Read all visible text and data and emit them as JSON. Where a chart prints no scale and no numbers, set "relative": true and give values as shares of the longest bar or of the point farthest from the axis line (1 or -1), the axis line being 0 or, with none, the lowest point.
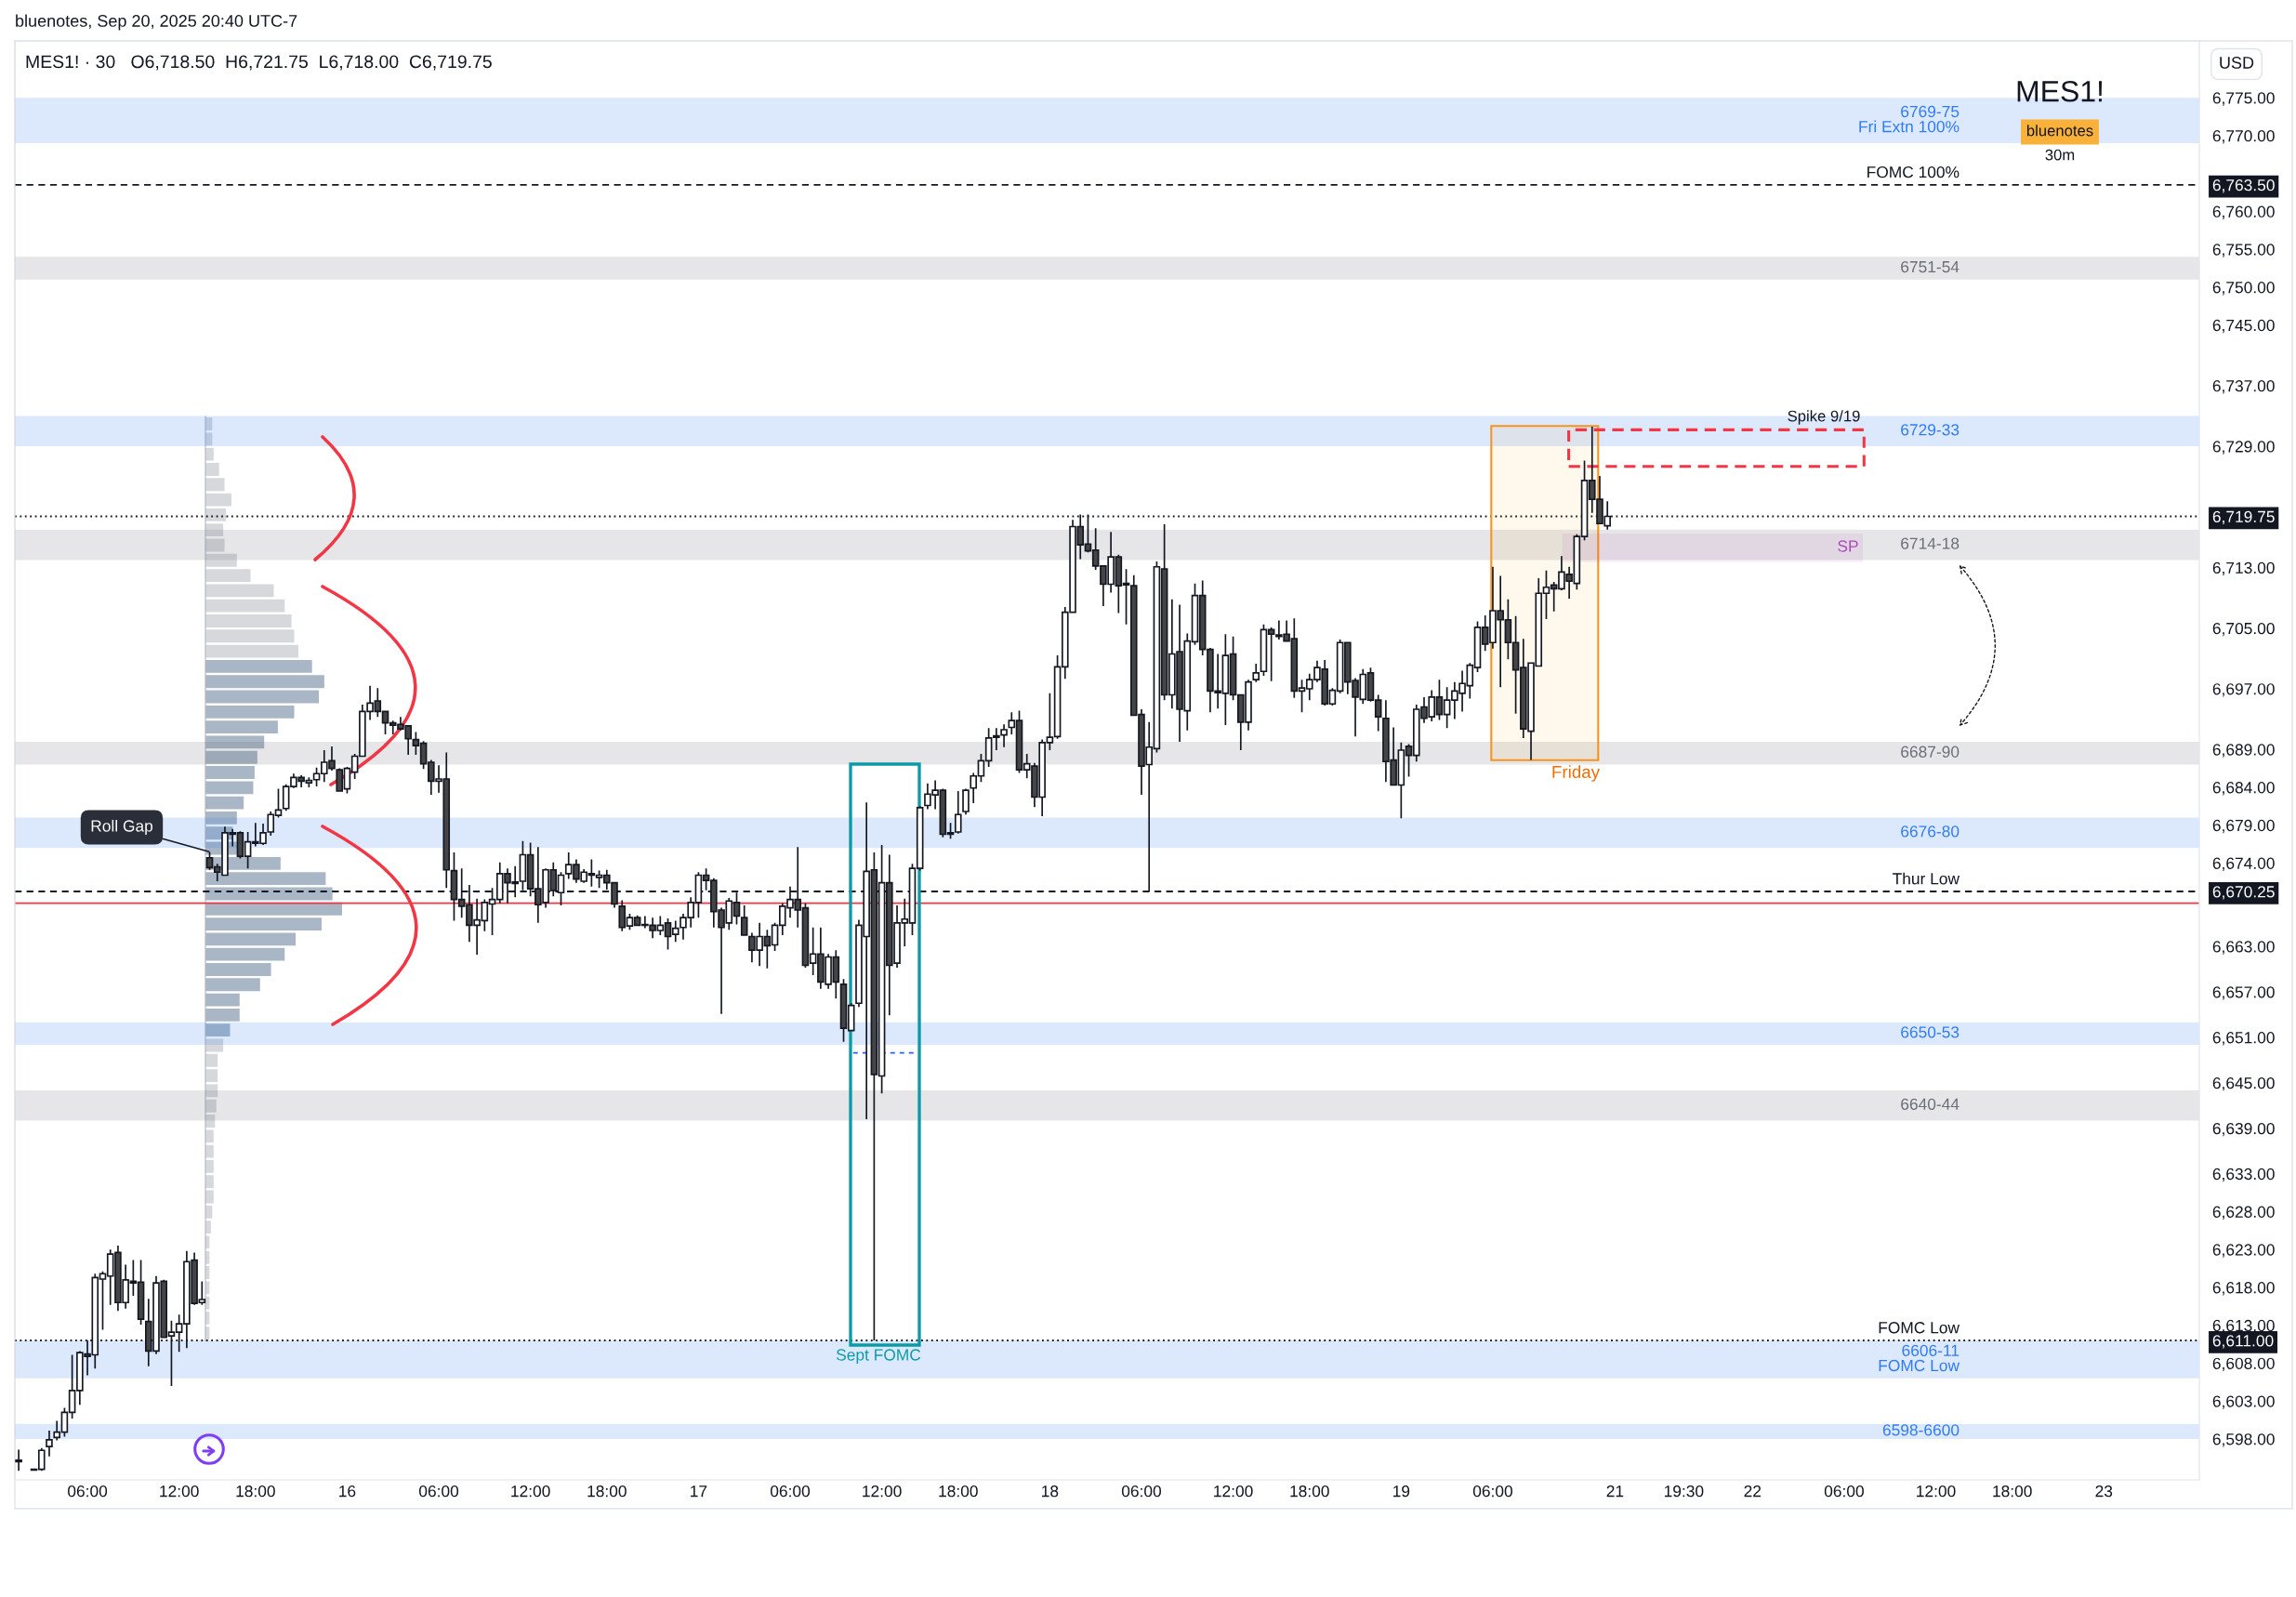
{
  "chart_data": [
    {
      "type": "candlestick",
      "title": "MES1! · 30   O6,718.50  H6,721.75  L6,718.00  C6,719.75",
      "ylabel": "USD",
      "categories": [
        null,
        null,
        null,
        null,
        null,
        null,
        null,
        null,
        null,
        "06:00",
        null,
        null,
        null,
        null,
        null,
        null,
        null,
        null,
        null,
        null,
        null,
        "12:00",
        null,
        null,
        null,
        null,
        null,
        null,
        null,
        null,
        null,
        "18:00",
        null,
        null,
        null,
        null,
        null,
        null,
        null,
        null,
        null,
        null,
        null,
        "16",
        null,
        null,
        null,
        null,
        null,
        null,
        null,
        null,
        null,
        null,
        null,
        "06:00",
        null,
        null,
        null,
        null,
        null,
        null,
        null,
        null,
        null,
        null,
        null,
        "12:00",
        null,
        null,
        null,
        null,
        null,
        null,
        null,
        null,
        null,
        "18:00",
        null,
        null,
        null,
        null,
        null,
        null,
        null,
        null,
        null,
        null,
        null,
        "17",
        null,
        null,
        null,
        null,
        null,
        null,
        null,
        null,
        null,
        null,
        null,
        "06:00",
        null,
        null,
        null,
        null,
        null,
        null,
        null,
        null,
        null,
        null,
        null,
        "12:00",
        null,
        null,
        null,
        null,
        null,
        null,
        null,
        null,
        null,
        "18:00",
        null,
        null,
        null,
        null,
        null,
        null,
        null,
        null,
        null,
        null,
        null,
        "18",
        null,
        null,
        null,
        null,
        null,
        null,
        null,
        null,
        null,
        null,
        null,
        "06:00",
        null,
        null,
        null,
        null,
        null,
        null,
        null,
        null,
        null,
        null,
        null,
        "12:00",
        null,
        null,
        null,
        null,
        null,
        null,
        null,
        null,
        null,
        "18:00",
        null,
        null,
        null,
        null,
        null,
        null,
        null,
        null,
        null,
        null,
        null,
        "19",
        null,
        null,
        null,
        null,
        null,
        null,
        null,
        null,
        null,
        null,
        null,
        "06:00",
        null,
        null,
        null,
        null,
        null,
        null,
        null,
        null,
        null,
        null,
        null,
        null,
        null,
        null,
        null,
        "21",
        null,
        null,
        null,
        null,
        null,
        null,
        null,
        null,
        "19:30",
        null,
        null,
        null,
        null,
        null,
        null,
        null,
        null,
        "22",
        null,
        null,
        null,
        null,
        null,
        null,
        null,
        null,
        null,
        null,
        null,
        "06:00",
        null,
        null,
        null,
        null,
        null,
        null,
        null,
        null,
        null,
        null,
        null,
        "12:00",
        null,
        null,
        null,
        null,
        null,
        null,
        null,
        null,
        null,
        "18:00",
        null,
        null,
        null,
        null,
        null,
        null,
        null,
        null,
        null,
        null,
        null,
        "23",
        null,
        null,
        null,
        null,
        null,
        null,
        null,
        null,
        null,
        null,
        null,
        null
      ],
      "ohlc": [
        [
          6595.2,
          6596.6,
          6593.8,
          6595.0
        ],
        null,
        [
          6594.0,
          6594.1,
          6593.8,
          6593.9
        ],
        [
          6594.0,
          6596.8,
          6593.8,
          6596.5
        ],
        [
          6597.0,
          6599.1,
          6595.7,
          6597.9
        ],
        [
          6598.2,
          6600.4,
          6597.8,
          6598.9
        ],
        [
          6598.9,
          6602.1,
          6598.3,
          6601.5
        ],
        [
          6601.5,
          6609.1,
          6600.7,
          6604.4
        ],
        [
          6604.4,
          6609.6,
          6602.5,
          6609.4
        ],
        [
          6609.2,
          6611.0,
          6606.4,
          6608.9
        ],
        [
          6609.1,
          6619.8,
          6607.3,
          6619.3
        ],
        [
          6619.1,
          6620.1,
          6612.4,
          6619.8
        ],
        [
          6619.5,
          6623.0,
          6615.7,
          6622.4
        ],
        [
          6622.6,
          6623.5,
          6614.9,
          6616.0
        ],
        [
          6616.0,
          6621.0,
          6615.2,
          6619.0
        ],
        [
          6618.8,
          6621.6,
          6616.9,
          6618.6
        ],
        [
          6618.7,
          6621.6,
          6613.1,
          6613.8
        ],
        [
          6613.5,
          6616.5,
          6607.6,
          6609.6
        ],
        [
          6609.6,
          6619.5,
          6609.2,
          6618.6
        ],
        [
          6618.8,
          6619.0,
          6611.3,
          6611.4
        ],
        [
          6611.6,
          6613.6,
          6605.0,
          6612.1
        ],
        [
          6612.1,
          6614.4,
          6609.5,
          6613.2
        ],
        [
          6613.2,
          6622.8,
          6610.0,
          6621.4
        ],
        [
          6621.6,
          6622.6,
          6615.7,
          6615.9
        ],
        [
          6616.0,
          6618.8,
          6615.7,
          6616.4
        ],
        [
          6674.7,
          6675.4,
          6673.1,
          6673.4
        ],
        [
          6673.5,
          6673.9,
          6671.6,
          6672.8
        ],
        [
          6672.4,
          6678.8,
          6672.3,
          6678.0
        ],
        [
          6678.0,
          6678.5,
          6676.2,
          6677.8
        ],
        [
          6678.0,
          6678.2,
          6674.6,
          6674.9
        ],
        [
          6674.9,
          6678.1,
          6673.3,
          6676.8
        ],
        [
          6676.8,
          6679.3,
          6676.2,
          6676.6
        ],
        [
          6676.6,
          6679.2,
          6676.4,
          6678.0
        ],
        [
          6678.1,
          6680.8,
          6677.6,
          6680.4
        ],
        [
          6680.3,
          6683.8,
          6680.0,
          6681.0
        ],
        [
          6681.2,
          6684.4,
          6680.9,
          6684.1
        ],
        [
          6684.1,
          6685.8,
          6683.9,
          6685.3
        ],
        [
          6685.3,
          6685.6,
          6684.0,
          6684.8
        ],
        [
          6684.6,
          6685.3,
          6684.0,
          6684.9
        ],
        [
          6685.0,
          6686.6,
          6684.1,
          6685.8
        ],
        [
          6685.8,
          6688.9,
          6684.7,
          6687.3
        ],
        [
          6687.5,
          6689.4,
          6686.2,
          6686.5
        ],
        [
          6686.3,
          6686.5,
          6683.5,
          6683.5
        ],
        [
          6683.8,
          6686.7,
          6683.2,
          6686.5
        ],
        [
          6686.0,
          6688.4,
          6685.1,
          6688.1
        ],
        [
          6688.1,
          6694.9,
          6688.0,
          6694.0
        ],
        [
          6694.0,
          6697.4,
          6692.9,
          6695.1
        ],
        [
          6695.4,
          6697.1,
          6693.3,
          6694.0
        ],
        [
          6694.0,
          6694.0,
          6691.0,
          6692.5
        ],
        [
          6692.5,
          6692.8,
          6691.0,
          6692.2
        ],
        [
          6692.3,
          6693.3,
          6691.5,
          6691.7
        ],
        [
          6692.1,
          6692.2,
          6688.3,
          6690.4
        ],
        [
          6690.3,
          6691.3,
          6688.3,
          6689.5
        ],
        [
          6689.8,
          6690.1,
          6686.4,
          6687.1
        ],
        [
          6687.3,
          6687.6,
          6683.0,
          6684.8
        ],
        [
          6684.8,
          6686.9,
          6683.3,
          6685.1
        ],
        [
          6685.1,
          6688.6,
          6670.7,
          6673.1
        ],
        [
          6673.0,
          6675.4,
          6666.4,
          6669.2
        ],
        [
          6669.2,
          6673.3,
          6666.8,
          6668.3
        ],
        [
          6668.5,
          6671.1,
          6663.6,
          6665.8
        ],
        [
          6665.8,
          6669.3,
          6661.9,
          6666.5
        ],
        [
          6666.4,
          6669.2,
          6665.0,
          6668.8
        ],
        [
          6668.6,
          6670.7,
          6664.5,
          6669.2
        ],
        [
          6669.2,
          6674.1,
          6668.7,
          6672.6
        ],
        [
          6672.6,
          6673.3,
          6668.7,
          6671.4
        ],
        [
          6671.5,
          6673.6,
          6669.5,
          6671.3
        ],
        [
          6671.6,
          6676.9,
          6670.4,
          6675.1
        ],
        [
          6675.1,
          6676.7,
          6669.6,
          6670.6
        ],
        [
          6670.6,
          6676.1,
          6666.1,
          6668.5
        ],
        [
          6668.8,
          6673.3,
          6668.1,
          6673.1
        ],
        [
          6673.1,
          6674.1,
          6669.6,
          6670.4
        ],
        [
          6670.1,
          6672.8,
          6668.4,
          6672.4
        ],
        [
          6672.6,
          6675.4,
          6671.9,
          6673.8
        ],
        [
          6673.8,
          6674.5,
          6671.4,
          6671.9
        ],
        [
          6671.6,
          6673.2,
          6671.4,
          6672.8
        ],
        [
          6672.6,
          6674.5,
          6670.9,
          6672.4
        ],
        [
          6672.1,
          6673.0,
          6670.7,
          6672.4
        ],
        [
          6672.4,
          6673.1,
          6670.5,
          6671.4
        ],
        [
          6671.4,
          6671.4,
          6668.1,
          6668.6
        ],
        [
          6668.3,
          6669.1,
          6665.0,
          6665.5
        ],
        [
          6665.7,
          6667.3,
          6665.2,
          6666.8
        ],
        [
          6666.8,
          6667.1,
          6665.7,
          6665.8
        ],
        [
          6665.9,
          6667.0,
          6665.4,
          6665.8
        ],
        [
          6665.8,
          6666.8,
          6664.1,
          6665.1
        ],
        [
          6665.1,
          6667.0,
          6664.5,
          6665.8
        ],
        [
          6666.1,
          6666.7,
          6662.6,
          6664.3
        ],
        [
          6664.6,
          6666.4,
          6663.6,
          6665.4
        ],
        [
          6665.5,
          6667.3,
          6663.9,
          6666.8
        ],
        [
          6666.8,
          6669.5,
          6665.5,
          6668.8
        ],
        [
          6668.8,
          6672.8,
          6666.8,
          6672.4
        ],
        [
          6672.4,
          6673.3,
          6670.4,
          6671.7
        ],
        [
          6671.7,
          6672.0,
          6665.5,
          6667.6
        ],
        [
          6667.8,
          6668.1,
          6654.1,
          6665.5
        ],
        [
          6666.1,
          6669.4,
          6665.2,
          6669.0
        ],
        [
          6668.8,
          6670.1,
          6665.9,
          6667.0
        ],
        [
          6666.8,
          6668.4,
          6664.5,
          6664.5
        ],
        [
          6664.3,
          6664.8,
          6660.9,
          6662.5
        ],
        [
          6662.5,
          6666.1,
          6660.4,
          6664.3
        ],
        [
          6664.3,
          6665.2,
          6660.1,
          6663.1
        ],
        [
          6663.2,
          6666.1,
          6662.4,
          6665.8
        ],
        [
          6665.8,
          6668.7,
          6664.5,
          6668.3
        ],
        [
          6668.1,
          6670.9,
          6666.8,
          6669.2
        ],
        [
          6669.2,
          6676.1,
          6665.5,
          6667.8
        ],
        [
          6668.1,
          6668.7,
          6660.2,
          6660.5
        ],
        [
          6660.8,
          6665.5,
          6659.2,
          6662.0
        ],
        [
          6662.0,
          6665.5,
          6657.4,
          6658.3
        ],
        [
          6658.0,
          6662.0,
          6657.4,
          6661.6
        ],
        [
          6661.6,
          6662.5,
          6656.1,
          6658.3
        ],
        [
          6658.0,
          6658.7,
          6650.4,
          6652.2
        ],
        [
          6651.9,
          6655.5,
          6651.8,
          6655.2
        ],
        [
          6655.5,
          6666.5,
          6655.0,
          6665.8
        ],
        [
          6664.3,
          6682.0,
          6640.2,
          6672.9
        ],
        [
          6673.1,
          6675.4,
          6611.0,
          6646.1
        ],
        [
          6645.9,
          6676.4,
          6643.6,
          6671.4
        ],
        [
          6671.4,
          6675.1,
          6653.9,
          6660.5
        ],
        [
          6660.8,
          6668.4,
          6660.2,
          6666.1
        ],
        [
          6666.1,
          6669.3,
          6663.0,
          6666.6
        ],
        [
          6666.1,
          6673.9,
          6664.5,
          6673.3
        ],
        [
          6673.3,
          6681.5,
          6673.0,
          6681.3
        ],
        [
          6681.6,
          6684.5,
          6681.1,
          6683.1
        ],
        [
          6683.0,
          6684.9,
          6681.1,
          6683.6
        ],
        [
          6683.6,
          6683.8,
          6677.4,
          6677.8
        ],
        [
          6678.0,
          6679.3,
          6677.2,
          6677.8
        ],
        [
          6678.1,
          6683.5,
          6677.9,
          6680.4
        ],
        [
          6680.8,
          6683.8,
          6680.4,
          6683.6
        ],
        [
          6683.9,
          6685.9,
          6681.9,
          6685.5
        ],
        [
          6685.5,
          6688.4,
          6684.7,
          6687.5
        ],
        [
          6687.5,
          6691.8,
          6686.7,
          6690.5
        ],
        [
          6690.8,
          6691.8,
          6688.9,
          6690.6
        ],
        [
          6690.9,
          6692.3,
          6689.3,
          6691.6
        ],
        [
          6691.9,
          6693.9,
          6691.0,
          6692.8
        ],
        [
          6692.8,
          6694.1,
          6685.9,
          6686.3
        ],
        [
          6686.3,
          6688.4,
          6685.2,
          6687.1
        ],
        [
          6686.8,
          6687.2,
          6681.4,
          6682.7
        ],
        [
          6682.7,
          6690.3,
          6680.2,
          6689.9
        ],
        [
          6689.9,
          6696.4,
          6688.9,
          6690.6
        ],
        [
          6690.7,
          6701.4,
          6690.4,
          6699.9
        ],
        [
          6699.9,
          6707.8,
          6698.3,
          6707.1
        ],
        [
          6707.1,
          6719.3,
          6707.0,
          6718.4
        ],
        [
          6718.4,
          6720.0,
          6714.1,
          6716.0
        ],
        [
          6716.1,
          6720.0,
          6715.0,
          6715.2
        ],
        [
          6715.3,
          6718.2,
          6712.7,
          6713.2
        ],
        [
          6713.2,
          6713.3,
          6707.9,
          6710.8
        ],
        [
          6710.8,
          6717.7,
          6709.7,
          6714.4
        ],
        [
          6714.4,
          6714.7,
          6707.0,
          6710.6
        ],
        [
          6710.9,
          6712.8,
          6705.5,
          6710.7
        ],
        [
          6710.6,
          6712.0,
          6693.4,
          6693.5
        ],
        [
          6693.6,
          6694.3,
          6683.0,
          6686.8
        ],
        [
          6687.0,
          6692.6,
          6670.25,
          6689.3
        ],
        [
          6689.1,
          6713.8,
          6688.6,
          6713.1
        ],
        [
          6712.8,
          6718.7,
          6695.5,
          6696.2
        ],
        [
          6696.2,
          6708.8,
          6694.4,
          6701.6
        ],
        [
          6701.9,
          6708.1,
          6690.0,
          6694.3
        ],
        [
          6694.1,
          6704.3,
          6691.5,
          6703.3
        ],
        [
          6703.2,
          6710.9,
          6702.8,
          6709.3
        ],
        [
          6709.3,
          6711.3,
          6701.4,
          6702.2
        ],
        [
          6702.2,
          6702.4,
          6693.9,
          6696.7
        ],
        [
          6696.7,
          6701.6,
          6694.4,
          6696.5
        ],
        [
          6696.4,
          6704.2,
          6692.2,
          6701.4
        ],
        [
          6701.6,
          6703.9,
          6695.5,
          6696.2
        ],
        [
          6696.2,
          6696.3,
          6688.9,
          6692.6
        ],
        [
          6692.6,
          6698.2,
          6691.5,
          6697.9
        ],
        [
          6698.2,
          6700.3,
          6697.9,
          6699.1
        ],
        [
          6699.3,
          6705.5,
          6698.7,
          6704.8
        ],
        [
          6704.8,
          6705.1,
          6698.0,
          6704.2
        ],
        [
          6704.1,
          6706.0,
          6703.5,
          6703.9
        ],
        [
          6704.2,
          6706.0,
          6703.3,
          6703.3
        ],
        [
          6703.6,
          6706.3,
          6695.8,
          6696.7
        ],
        [
          6696.7,
          6698.2,
          6693.9,
          6697.1
        ],
        [
          6697.0,
          6699.0,
          6695.5,
          6698.2
        ],
        [
          6698.2,
          6700.7,
          6697.9,
          6699.8
        ],
        [
          6699.6,
          6700.8,
          6694.8,
          6695.0
        ],
        [
          6695.0,
          6697.1,
          6694.8,
          6696.8
        ],
        [
          6696.7,
          6703.5,
          6696.4,
          6703.1
        ],
        [
          6703.1,
          6703.2,
          6696.3,
          6697.9
        ],
        [
          6698.1,
          6698.4,
          6690.7,
          6695.9
        ],
        [
          6695.6,
          6699.6,
          6695.0,
          6698.9
        ],
        [
          6699.1,
          6699.8,
          6695.3,
          6695.5
        ],
        [
          6695.5,
          6696.2,
          6691.4,
          6693.3
        ],
        [
          6693.1,
          6695.5,
          6684.7,
          6687.4
        ],
        [
          6687.6,
          6691.9,
          6684.2,
          6684.3
        ],
        [
          6684.3,
          6689.9,
          6679.9,
          6688.9
        ],
        [
          6689.4,
          6689.7,
          6685.4,
          6688.2
        ],
        [
          6688.2,
          6694.9,
          6687.4,
          6694.3
        ],
        [
          6694.6,
          6695.9,
          6692.5,
          6693.1
        ],
        [
          6693.3,
          6696.8,
          6692.7,
          6695.9
        ],
        [
          6695.9,
          6698.2,
          6692.9,
          6693.6
        ],
        [
          6693.6,
          6697.2,
          6691.8,
          6695.5
        ],
        [
          6695.5,
          6697.9,
          6693.0,
          6696.7
        ],
        [
          6696.4,
          6699.4,
          6694.0,
          6697.7
        ],
        [
          6697.4,
          6700.4,
          6695.7,
          6700.1
        ],
        [
          6699.8,
          6705.9,
          6699.2,
          6705.1
        ],
        [
          6705.1,
          6706.7,
          6702.0,
          6702.9
        ],
        [
          6703.1,
          6713.1,
          6702.3,
          6707.3
        ],
        [
          6707.3,
          6711.9,
          6697.2,
          6706.1
        ],
        [
          6706.1,
          6708.8,
          6700.9,
          6703.1
        ],
        [
          6703.1,
          6706.6,
          6693.7,
          6699.5
        ],
        [
          6699.8,
          6703.6,
          6690.5,
          6691.7
        ],
        [
          6691.4,
          6700.4,
          6687.6,
          6700.4
        ],
        [
          6700.0,
          6711.6,
          6699.9,
          6709.6
        ],
        [
          6709.6,
          6712.6,
          6706.2,
          6710.4
        ],
        [
          6710.7,
          6711.1,
          6707.2,
          6710.2
        ],
        [
          6710.2,
          6714.5,
          6710.0,
          6712.4
        ],
        [
          6712.1,
          6713.1,
          6708.9,
          6711.2
        ],
        [
          6710.9,
          6717.4,
          6710.1,
          6717.1
        ],
        [
          6717.1,
          6727.1,
          6716.6,
          6724.5
        ],
        [
          6724.5,
          6731.6,
          6720.2,
          6722.0
        ],
        [
          6722.0,
          6725.1,
          6718.8,
          6718.8
        ],
        [
          6718.5,
          6721.75,
          6718.0,
          6719.75
        ],
        null,
        null,
        null,
        null,
        null,
        null,
        null,
        null,
        null,
        null,
        null,
        null,
        null,
        null,
        null,
        null,
        null,
        null,
        null,
        null,
        null,
        null,
        null,
        null,
        null,
        null,
        null,
        null,
        null,
        null,
        null,
        null,
        null,
        null,
        null,
        null,
        null,
        null,
        null,
        null,
        null,
        null,
        null,
        null,
        null,
        null,
        null,
        null,
        null,
        null,
        null,
        null,
        null,
        null,
        null,
        null,
        null,
        null,
        null,
        null,
        null,
        null,
        null,
        null,
        null,
        null,
        null,
        null,
        null,
        null,
        null,
        null,
        null,
        null,
        null,
        null,
        null
      ],
      "colors": [
        "#454545",
        null,
        "#454545",
        "#ffffff",
        "#ffffff",
        "#ffffff",
        "#ffffff",
        "#ffffff",
        "#ffffff",
        "#454545",
        "#ffffff",
        "#ffffff",
        "#ffffff",
        "#454545",
        "#ffffff",
        "#454545",
        "#454545",
        "#454545",
        "#ffffff",
        "#454545",
        "#ffffff",
        "#ffffff",
        "#ffffff",
        "#454545",
        "#ffffff",
        "#454545",
        "#454545",
        "#ffffff",
        "#454545",
        "#454545",
        "#ffffff",
        "#454545",
        "#ffffff",
        "#ffffff",
        "#ffffff",
        "#ffffff",
        "#ffffff",
        "#454545",
        "#ffffff",
        "#ffffff",
        "#ffffff",
        "#454545",
        "#454545",
        "#ffffff",
        "#ffffff",
        "#ffffff",
        "#ffffff",
        "#454545",
        "#454545",
        "#454545",
        "#454545",
        "#454545",
        "#454545",
        "#454545",
        "#454545",
        "#ffffff",
        "#454545",
        "#454545",
        "#454545",
        "#454545",
        "#ffffff",
        "#ffffff",
        "#ffffff",
        "#ffffff",
        "#454545",
        "#454545",
        "#ffffff",
        "#454545",
        "#454545",
        "#ffffff",
        "#454545",
        "#ffffff",
        "#ffffff",
        "#454545",
        "#ffffff",
        "#454545",
        "#ffffff",
        "#454545",
        "#454545",
        "#454545",
        "#ffffff",
        "#454545",
        "#454545",
        "#454545",
        "#ffffff",
        "#454545",
        "#ffffff",
        "#ffffff",
        "#ffffff",
        "#ffffff",
        "#454545",
        "#454545",
        "#454545",
        "#ffffff",
        "#454545",
        "#454545",
        "#454545",
        "#ffffff",
        "#454545",
        "#ffffff",
        "#ffffff",
        "#ffffff",
        "#454545",
        "#454545",
        "#ffffff",
        "#454545",
        "#ffffff",
        "#454545",
        "#454545",
        "#ffffff",
        "#ffffff",
        "#ffffff",
        "#454545",
        "#ffffff",
        "#454545",
        "#ffffff",
        "#ffffff",
        "#ffffff",
        "#ffffff",
        "#ffffff",
        "#ffffff",
        "#454545",
        "#454545",
        "#ffffff",
        "#ffffff",
        "#ffffff",
        "#ffffff",
        "#ffffff",
        "#454545",
        "#ffffff",
        "#ffffff",
        "#454545",
        "#ffffff",
        "#454545",
        "#ffffff",
        "#ffffff",
        "#ffffff",
        "#ffffff",
        "#ffffff",
        "#454545",
        "#454545",
        "#454545",
        "#454545",
        "#ffffff",
        "#454545",
        "#454545",
        "#454545",
        "#454545",
        "#ffffff",
        "#ffffff",
        "#454545",
        "#ffffff",
        "#454545",
        "#ffffff",
        "#ffffff",
        "#454545",
        "#454545",
        "#454545",
        "#ffffff",
        "#454545",
        "#454545",
        "#ffffff",
        "#ffffff",
        "#ffffff",
        "#454545",
        "#454545",
        "#454545",
        "#454545",
        "#ffffff",
        "#ffffff",
        "#ffffff",
        "#454545",
        "#ffffff",
        "#ffffff",
        "#454545",
        "#454545",
        "#ffffff",
        "#454545",
        "#454545",
        "#454545",
        "#454545",
        "#ffffff",
        "#454545",
        "#ffffff",
        "#454545",
        "#ffffff",
        "#454545",
        "#ffffff",
        "#ffffff",
        "#ffffff",
        "#ffffff",
        "#ffffff",
        "#454545",
        "#ffffff",
        "#454545",
        "#454545",
        "#454545",
        "#454545",
        "#ffffff",
        "#ffffff",
        "#ffffff",
        "#454545",
        "#ffffff",
        "#454545",
        "#ffffff",
        "#ffffff",
        "#454545",
        "#454545",
        "#ffffff",
        null,
        null,
        null,
        null,
        null,
        null,
        null,
        null,
        null,
        null,
        null,
        null,
        null,
        null,
        null,
        null,
        null,
        null,
        null,
        null,
        null,
        null,
        null,
        null,
        null,
        null,
        null,
        null,
        null,
        null,
        null,
        null,
        null,
        null,
        null,
        null,
        null,
        null,
        null,
        null,
        null,
        null,
        null,
        null,
        null,
        null,
        null,
        null,
        null,
        null,
        null,
        null,
        null,
        null,
        null,
        null,
        null,
        null,
        null,
        null,
        null,
        null,
        null,
        null,
        null,
        null,
        null,
        null,
        null,
        null,
        null,
        null,
        null,
        null,
        null,
        null,
        null
      ],
      "ylim": [
        6592.6,
        6782.5
      ],
      "yticks": [
        {
          "value": 6598,
          "label": "6,598.00"
        },
        {
          "value": 6603,
          "label": "6,603.00"
        },
        {
          "value": 6608,
          "label": "6,608.00"
        },
        {
          "value": 6613,
          "label": "6,613.00"
        },
        {
          "value": 6618,
          "label": "6,618.00"
        },
        {
          "value": 6623,
          "label": "6,623.00"
        },
        {
          "value": 6628,
          "label": "6,628.00"
        },
        {
          "value": 6633,
          "label": "6,633.00"
        },
        {
          "value": 6639,
          "label": "6,639.00"
        },
        {
          "value": 6645,
          "label": "6,645.00"
        },
        {
          "value": 6651,
          "label": "6,651.00"
        },
        {
          "value": 6657,
          "label": "6,657.00"
        },
        {
          "value": 6663,
          "label": "6,663.00"
        },
        {
          "value": 6674,
          "label": "6,674.00"
        },
        {
          "value": 6679,
          "label": "6,679.00"
        },
        {
          "value": 6684,
          "label": "6,684.00"
        },
        {
          "value": 6689,
          "label": "6,689.00"
        },
        {
          "value": 6697,
          "label": "6,697.00"
        },
        {
          "value": 6705,
          "label": "6,705.00"
        },
        {
          "value": 6713,
          "label": "6,713.00"
        },
        {
          "value": 6729,
          "label": "6,729.00"
        },
        {
          "value": 6737,
          "label": "6,737.00"
        },
        {
          "value": 6745,
          "label": "6,745.00"
        },
        {
          "value": 6750,
          "label": "6,750.00"
        },
        {
          "value": 6755,
          "label": "6,755.00"
        },
        {
          "value": 6760,
          "label": "6,760.00"
        },
        {
          "value": 6770,
          "label": "6,770.00"
        },
        {
          "value": 6775,
          "label": "6,775.00"
        },
        {
          "value": 6611,
          "label": "6,611.00"
        },
        {
          "value": 6670.25,
          "label": "6,670.25"
        },
        {
          "value": 6719.75,
          "label": "6,719.75"
        },
        {
          "value": 6763.5,
          "label": "6,763.50"
        }
      ],
      "bands": [
        {
          "axis": "y",
          "from": 6769,
          "to": 6775,
          "label": "6769-75\nFri Extn 100%",
          "color": "#2f7bf5"
        },
        {
          "axis": "y",
          "from": 6751,
          "to": 6754,
          "label": "6751-54",
          "color": "#6a6d78"
        },
        {
          "axis": "y",
          "from": 6729,
          "to": 6733,
          "label": "6729-33",
          "color": "#2f7bf5"
        },
        {
          "axis": "y",
          "from": 6714,
          "to": 6718,
          "label": "6714-18",
          "color": "#6a6d78"
        },
        {
          "axis": "y",
          "from": 6687,
          "to": 6690,
          "label": "6687-90",
          "color": "#6a6d78"
        },
        {
          "axis": "y",
          "from": 6676,
          "to": 6680,
          "label": "6676-80",
          "color": "#2f7bf5"
        },
        {
          "axis": "y",
          "from": 6650,
          "to": 6653,
          "label": "6650-53",
          "color": "#2f7bf5"
        },
        {
          "axis": "y",
          "from": 6640,
          "to": 6644,
          "label": "6640-44",
          "color": "#6a6d78"
        },
        {
          "axis": "y",
          "from": 6606,
          "to": 6611,
          "label": "6606-11\nFOMC Low",
          "color": "#2f7bf5"
        },
        {
          "axis": "y",
          "from": 6598,
          "to": 6600,
          "label": "6598-6600",
          "color": "#2f7bf5"
        }
      ],
      "ref_lines": [
        {
          "axis": "y",
          "value": 6763.5,
          "label": "FOMC 100%",
          "line_style": "dashed",
          "color": "#131722"
        },
        {
          "axis": "y",
          "value": 6719.75,
          "line_style": "dotted",
          "color": "#131722"
        },
        {
          "axis": "y",
          "value": 6670.25,
          "label": "Thur Low",
          "line_style": "dashed",
          "color": "#131722"
        },
        {
          "axis": "y",
          "value": 6668.7,
          "line_style": "solid",
          "color": "#f23645"
        },
        {
          "axis": "y",
          "value": 6611,
          "label": "FOMC Low",
          "line_style": "dotted",
          "color": "#131722"
        }
      ],
      "annotations": [
        "bluenotes, Sep 20, 2025 20:40 UTC-7",
        "MES1!",
        "bluenotes",
        "30m",
        {
          "text": "Roll Gap",
          "y": 6675.5
        },
        "Sept FOMC",
        "Friday",
        "Spike 9/19",
        "SP"
      ]
    },
    {
      "type": "bar",
      "orientation": "horizontal",
      "relative": true,
      "categories": [
        null,
        null,
        null,
        null,
        null,
        null,
        null,
        null,
        null,
        null,
        null,
        null,
        null,
        null,
        null,
        null,
        null,
        null,
        null,
        null,
        null,
        null,
        null,
        null,
        null,
        null,
        null,
        null,
        null,
        null,
        null,
        null,
        null,
        null,
        null,
        null,
        null,
        null,
        null,
        null,
        null,
        null,
        null,
        null,
        null,
        null,
        null,
        null,
        null,
        null,
        null,
        null,
        null,
        null,
        null,
        null,
        null,
        null,
        null,
        null,
        null
      ],
      "values": [
        0.05,
        0.05,
        0.06,
        0.1,
        0.14,
        0.19,
        0.15,
        0.13,
        0.14,
        0.23,
        0.33,
        0.5,
        0.58,
        0.63,
        0.65,
        0.68,
        0.78,
        0.87,
        0.83,
        0.65,
        0.53,
        0.43,
        0.38,
        0.36,
        0.35,
        0.28,
        0.23,
        0.2,
        0.23,
        0.55,
        0.88,
        0.93,
        1.0,
        0.85,
        0.66,
        0.58,
        0.48,
        0.4,
        0.25,
        0.25,
        0.18,
        0.13,
        0.09,
        0.09,
        0.09,
        0.08,
        0.07,
        0.06,
        0.06,
        0.06,
        0.06,
        0.06,
        0.05,
        0.04,
        0.03,
        0.03,
        0.03,
        0.03,
        0.03,
        0.03,
        0.03
      ],
      "colors": [
        "#d6d8dc",
        "#d6d8dc",
        "#d6d8dc",
        "#d6d8dc",
        "#d6d8dc",
        "#d6d8dc",
        "#d6d8dc",
        "#d6d8dc",
        "#d6d8dc",
        "#d6d8dc",
        "#d6d8dc",
        "#d6d8dc",
        "#d6d8dc",
        "#d6d8dc",
        "#d6d8dc",
        "#d6d8dc",
        "#a9b6c5",
        "#a9b6c5",
        "#a9b6c5",
        "#a9b6c5",
        "#a9b6c5",
        "#a9b6c5",
        "#a9b6c5",
        "#a9b6c5",
        "#a9b6c5",
        "#a9b6c5",
        "#a9b6c5",
        "#a9b6c5",
        "#a9b6c5",
        "#a9b6c5",
        "#a9b6c5",
        "#a9b6c5",
        "#a9b6c5",
        "#a9b6c5",
        "#a9b6c5",
        "#a9b6c5",
        "#a9b6c5",
        "#a9b6c5",
        "#a9b6c5",
        "#a9b6c5",
        "#a9b6c5",
        "#d6d8dc",
        "#d6d8dc",
        "#d6d8dc",
        "#d6d8dc",
        "#d6d8dc",
        "#d6d8dc",
        "#d6d8dc",
        "#d6d8dc",
        "#d6d8dc",
        "#d6d8dc",
        "#d6d8dc",
        "#d6d8dc",
        "#d6d8dc",
        "#d6d8dc",
        "#d6d8dc",
        "#d6d8dc",
        "#d6d8dc",
        "#d6d8dc",
        "#d6d8dc",
        "#d6d8dc"
      ]
    }
  ]
}
